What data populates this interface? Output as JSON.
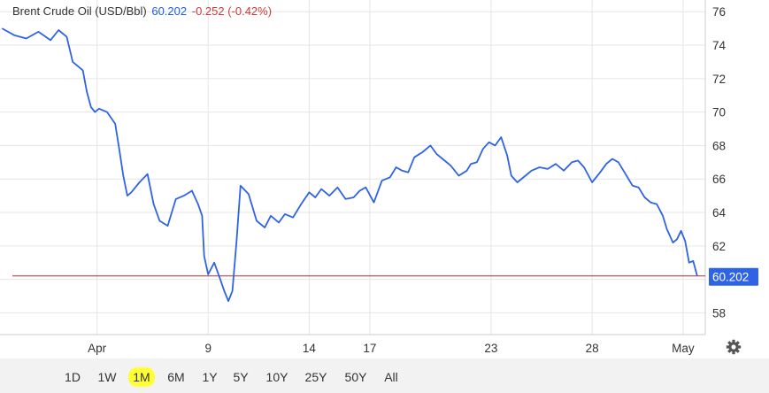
{
  "legend": {
    "title": "Brent Crude Oil (USD/Bbl)",
    "last": "60.202",
    "change": "-0.252 (-0.42%)"
  },
  "price_tag": "60.202",
  "colors": {
    "line": "#2f63e6",
    "reference_line": "#c0282d",
    "price_tag_bg": "#2f63e6",
    "highlight": "#ffff36"
  },
  "icons": {
    "settings": "gear-icon"
  },
  "timeframes": [
    {
      "label": "1D",
      "active": false
    },
    {
      "label": "1W",
      "active": false
    },
    {
      "label": "1M",
      "active": true
    },
    {
      "label": "6M",
      "active": false
    },
    {
      "label": "1Y",
      "active": false
    },
    {
      "label": "5Y",
      "active": false
    },
    {
      "label": "10Y",
      "active": false
    },
    {
      "label": "25Y",
      "active": false
    },
    {
      "label": "50Y",
      "active": false
    },
    {
      "label": "All",
      "active": false
    }
  ],
  "chart_data": {
    "type": "line",
    "x_ticks": [
      {
        "label": "Apr",
        "x": 3.5
      },
      {
        "label": "9",
        "x": 9
      },
      {
        "label": "14",
        "x": 14
      },
      {
        "label": "17",
        "x": 17
      },
      {
        "label": "23",
        "x": 23
      },
      {
        "label": "28",
        "x": 28
      },
      {
        "label": "May",
        "x": 32.5
      }
    ],
    "y_ticks": [
      58,
      60,
      62,
      64,
      66,
      68,
      70,
      72,
      74,
      76
    ],
    "xlim": [
      -1.3,
      33.6
    ],
    "ylim": [
      56.7,
      76.7
    ],
    "reference_value": 60.202,
    "grid": true,
    "series": [
      {
        "x": [
          -1.2,
          -0.6,
          0.0,
          0.6,
          1.2,
          1.6,
          2.0,
          2.3,
          2.8,
          3.0,
          3.2,
          3.4,
          3.6,
          4.0,
          4.4,
          4.6,
          4.8,
          5.0,
          5.2,
          5.6,
          6.0,
          6.3,
          6.6,
          7.0,
          7.4,
          7.8,
          8.2,
          8.5,
          8.7,
          8.8,
          9.0,
          9.3,
          9.6,
          9.8,
          10.0,
          10.1,
          10.2,
          10.4,
          10.6,
          11.0,
          11.4,
          11.8,
          12.1,
          12.5,
          12.8,
          13.2,
          13.6,
          14.0,
          14.3,
          14.6,
          15.0,
          15.4,
          15.8,
          16.2,
          16.5,
          16.8,
          17.2,
          17.6,
          18.0,
          18.3,
          18.6,
          18.9,
          19.2,
          19.6,
          20.0,
          20.3,
          20.6,
          21.0,
          21.4,
          21.8,
          22.0,
          22.3,
          22.6,
          22.9,
          23.2,
          23.5,
          23.8,
          24.0,
          24.3,
          24.7,
          25.0,
          25.4,
          25.8,
          26.2,
          26.6,
          27.0,
          27.3,
          27.6,
          28.0,
          28.4,
          28.7,
          29.0,
          29.3,
          29.6,
          30.0,
          30.3,
          30.6,
          30.9,
          31.2,
          31.5,
          31.7,
          32.0,
          32.2,
          32.4,
          32.6,
          32.8,
          33.0,
          33.2
        ],
        "y": [
          75.0,
          74.6,
          74.4,
          74.8,
          74.3,
          74.9,
          74.5,
          73.0,
          72.5,
          71.2,
          70.3,
          70.0,
          70.2,
          70.0,
          69.3,
          67.8,
          66.2,
          65.0,
          65.2,
          65.8,
          66.3,
          64.5,
          63.5,
          63.2,
          64.8,
          65.0,
          65.3,
          64.5,
          63.8,
          61.4,
          60.3,
          61.0,
          60.0,
          59.3,
          58.7,
          59.0,
          59.3,
          62.2,
          65.6,
          65.1,
          63.5,
          63.1,
          63.8,
          63.4,
          63.9,
          63.7,
          64.5,
          65.2,
          64.9,
          65.4,
          65.0,
          65.5,
          64.8,
          64.9,
          65.3,
          65.5,
          64.6,
          65.9,
          66.1,
          66.7,
          66.5,
          66.4,
          67.3,
          67.6,
          68.0,
          67.5,
          67.2,
          66.8,
          66.2,
          66.5,
          66.9,
          67.0,
          67.8,
          68.2,
          68.0,
          68.5,
          67.4,
          66.2,
          65.8,
          66.2,
          66.5,
          66.7,
          66.6,
          66.9,
          66.5,
          67.0,
          67.1,
          66.7,
          65.8,
          66.4,
          66.9,
          67.2,
          67.0,
          66.4,
          65.6,
          65.5,
          64.9,
          64.6,
          64.5,
          63.8,
          63.0,
          62.2,
          62.4,
          62.9,
          62.3,
          61.0,
          61.1,
          60.2
        ]
      }
    ]
  }
}
